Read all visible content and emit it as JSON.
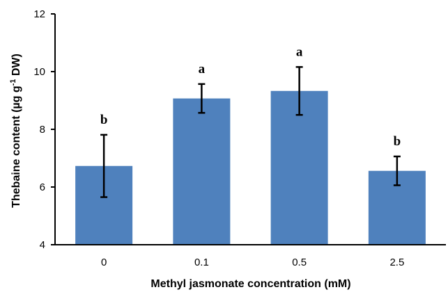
{
  "chart_data": {
    "type": "bar",
    "categories": [
      "0",
      "0.1",
      "0.5",
      "2.5"
    ],
    "values": [
      6.73,
      9.07,
      9.33,
      6.56
    ],
    "error": [
      1.08,
      0.5,
      0.83,
      0.5
    ],
    "significance": [
      "b",
      "a",
      "a",
      "b"
    ],
    "title": "",
    "xlabel": "Methyl jasmonate concentration (mM)",
    "ylabel": {
      "before": "Thebaine content (µg g",
      "sup": "-1",
      "after": " DW)"
    },
    "ylim": [
      4,
      12
    ],
    "yticks": [
      "4",
      "6",
      "8",
      "10",
      "12"
    ],
    "grid": false,
    "legend": "none",
    "bar_color": "#4F81BD",
    "axis_color": "#000000"
  }
}
